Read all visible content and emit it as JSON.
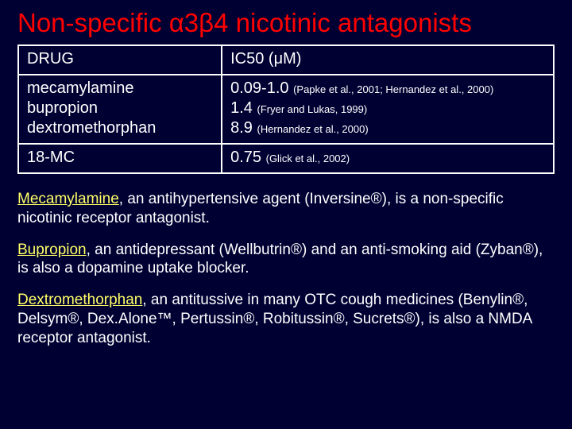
{
  "title": "Non-specific α3β4 nicotinic antagonists",
  "table": {
    "header": {
      "drug": "DRUG",
      "ic50": "IC50 (μM)"
    },
    "rows": [
      {
        "drugs": [
          "mecamylamine",
          "bupropion",
          "dextromethorphan"
        ],
        "ic50": [
          {
            "val": "0.09-1.0",
            "cite": "(Papke et al., 2001; Hernandez et al., 2000)"
          },
          {
            "val": "1.4",
            "cite": "(Fryer and Lukas, 1999)"
          },
          {
            "val": "8.9",
            "cite": "(Hernandez et al., 2000)"
          }
        ]
      },
      {
        "drugs": [
          "18-MC"
        ],
        "ic50": [
          {
            "val": "0.75",
            "cite": "(Glick et al., 2002)"
          }
        ]
      }
    ]
  },
  "paragraphs": {
    "p1": {
      "name": "Mecamylamine",
      "rest": ", an antihypertensive agent (Inversine®), is a non-specific nicotinic receptor antagonist."
    },
    "p2": {
      "name": "Bupropion",
      "rest": ", an antidepressant (Wellbutrin®) and an anti-smoking aid (Zyban®), is also a dopamine uptake blocker."
    },
    "p3": {
      "name": "Dextromethorphan",
      "rest": ", an antitussive in many OTC cough medicines (Benylin®, Delsym®, Dex.Alone™, Pertussin®, Robitussin®, Sucrets®), is also a  NMDA receptor antagonist."
    }
  },
  "colors": {
    "background": "#000033",
    "text": "#ffffff",
    "title": "#ff0000",
    "highlight": "#ffff66",
    "border": "#ffffff"
  }
}
